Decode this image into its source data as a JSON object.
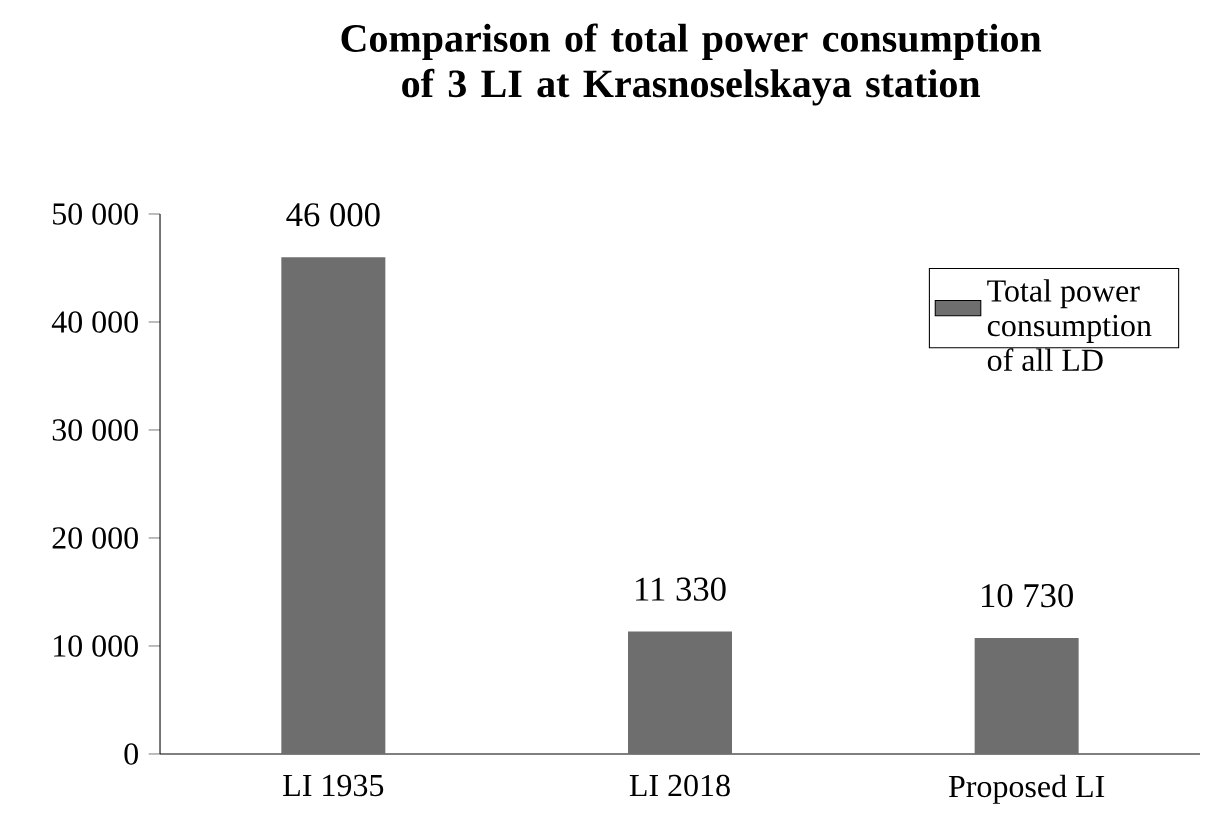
{
  "chart_data": {
    "type": "bar",
    "title": "Comparison of total power consumption of 3 LI at Krasnoselskaya station",
    "categories": [
      "LI 1935",
      "LI 2018",
      "Proposed LI"
    ],
    "series": [
      {
        "name": "Total power consumption of all LD",
        "color": "#6e6e6e",
        "values": [
          46000,
          11330,
          10730
        ],
        "value_labels": [
          "46 000",
          "11 330",
          "10 730"
        ]
      }
    ],
    "ylim": [
      0,
      50000
    ],
    "yticks": [
      {
        "value": 0,
        "label": "0"
      },
      {
        "value": 10000,
        "label": "10 000"
      },
      {
        "value": 20000,
        "label": "20 000"
      },
      {
        "value": 30000,
        "label": "30 000"
      },
      {
        "value": 40000,
        "label": "40 000"
      },
      {
        "value": 50000,
        "label": "50 000"
      }
    ],
    "legend": "top right"
  }
}
